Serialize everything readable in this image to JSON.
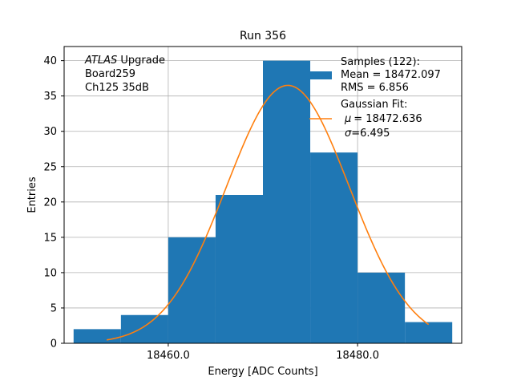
{
  "chart_data": {
    "type": "bar",
    "title": "Run 356",
    "xlabel": "Energy [ADC Counts]",
    "ylabel": "Entries",
    "xlim": [
      18449.0,
      18491.0
    ],
    "ylim": [
      0,
      42
    ],
    "grid": true,
    "bins": [
      {
        "x0": 18450.0,
        "x1": 18455.0,
        "count": 2
      },
      {
        "x0": 18455.0,
        "x1": 18460.0,
        "count": 4
      },
      {
        "x0": 18460.0,
        "x1": 18465.0,
        "count": 15
      },
      {
        "x0": 18465.0,
        "x1": 18470.0,
        "count": 21
      },
      {
        "x0": 18470.0,
        "x1": 18475.0,
        "count": 40
      },
      {
        "x0": 18475.0,
        "x1": 18480.0,
        "count": 27
      },
      {
        "x0": 18480.0,
        "x1": 18485.0,
        "count": 10
      },
      {
        "x0": 18485.0,
        "x1": 18490.0,
        "count": 3
      }
    ],
    "fit": {
      "type": "gaussian",
      "mu": 18472.636,
      "sigma": 6.495,
      "peak": 36.5,
      "x_range": [
        18453.5,
        18487.5
      ]
    },
    "x_ticks": [
      18460.0,
      18480.0
    ],
    "x_tick_labels": [
      "18460.0",
      "18480.0"
    ],
    "y_ticks": [
      0,
      5,
      10,
      15,
      20,
      25,
      30,
      35,
      40
    ],
    "y_tick_labels": [
      "0",
      "5",
      "10",
      "15",
      "20",
      "25",
      "30",
      "35",
      "40"
    ],
    "colors": {
      "bars": "#1f77b4",
      "fit_line": "#ff7f0e",
      "grid": "#b0b0b0"
    },
    "annotation": {
      "italic_part": "ATLAS",
      "rest": " Upgrade",
      "line2": " Board259",
      "line3": " Ch125 35dB"
    },
    "legend": {
      "position": "top-right",
      "hist_lines": [
        "Samples (122):",
        " Mean = 18472.097",
        " RMS = 6.856"
      ],
      "fit_lines": [
        "Gaussian Fit:",
        "= 18472.636",
        "=6.495"
      ],
      "mu_symbol": "μ",
      "sigma_symbol": "σ"
    }
  }
}
